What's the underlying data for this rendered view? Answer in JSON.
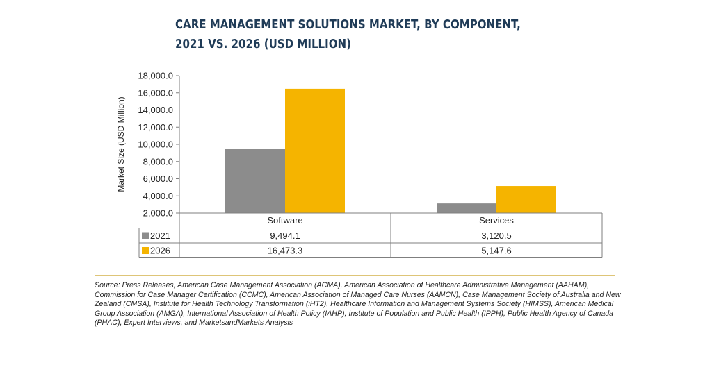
{
  "title_line1": "CARE MANAGEMENT SOLUTIONS MARKET, BY COMPONENT,",
  "title_line2": "2021 VS. 2026 (USD MILLION)",
  "source": "Source: Press Releases, American Case Management Association (ACMA), American Association of Healthcare Administrative Management (AAHAM), Commission for Case Manager Certification (CCMC), American Association of Managed Care Nurses (AAMCN), Case Management Society of Australia and New Zealand (CMSA), Institute for Health Technology Transformation (iHT2), Healthcare Information and Management Systems Society (HIMSS), American Medical Group Association (AMGA), International Association of Health Policy (IAHP), Institute of Population and Public Health (IPPH), Public Health Agency of Canada (PHAC), Expert Interviews, and MarketsandMarkets Analysis",
  "colors": {
    "title": "#1f3b57",
    "s2021": "#8c8c8c",
    "s2026": "#f5b400",
    "rule": "#c9a227"
  },
  "chart_data": {
    "type": "bar",
    "title": "CARE MANAGEMENT SOLUTIONS MARKET, BY COMPONENT, 2021 VS. 2026 (USD MILLION)",
    "categories": [
      "Software",
      "Services"
    ],
    "series": [
      {
        "name": "2021",
        "values": [
          9494.1,
          3120.5
        ],
        "labels": [
          "9,494.1",
          "3,120.5"
        ],
        "color": "#8c8c8c"
      },
      {
        "name": "2026",
        "values": [
          16473.3,
          5147.6
        ],
        "labels": [
          "16,473.3",
          "5,147.6"
        ],
        "color": "#f5b400"
      }
    ],
    "xlabel": "",
    "ylabel": "Market Size (USD Million)",
    "ylim": [
      2000,
      18000
    ],
    "yticks": [
      2000,
      4000,
      6000,
      8000,
      10000,
      12000,
      14000,
      16000,
      18000
    ],
    "ytick_labels": [
      "2,000.0",
      "4,000.0",
      "6,000.0",
      "8,000.0",
      "10,000.0",
      "12,000.0",
      "14,000.0",
      "16,000.0",
      "18,000.0"
    ],
    "grid": false,
    "data_table": true
  }
}
